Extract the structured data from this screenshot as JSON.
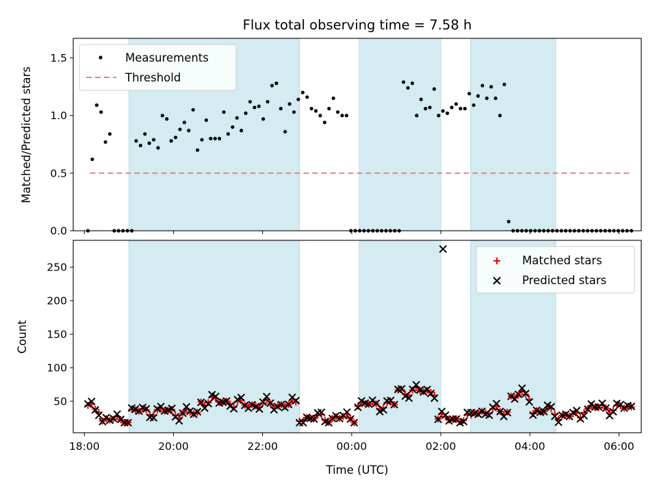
{
  "chart_data": [
    {
      "type": "scatter",
      "title": "Flux total observing time = 7.58 h",
      "ylabel": "Matched/Predicted stars",
      "xlabel": "",
      "ylim": [
        0,
        1.67
      ],
      "yticks": [
        0.0,
        0.5,
        1.0,
        1.5
      ],
      "ytick_labels": [
        "0.0",
        "0.5",
        "1.0",
        "1.5"
      ],
      "legend": {
        "placement": "upper-left",
        "entries": [
          {
            "label": "Measurements",
            "marker": "dot",
            "color": "#000000"
          },
          {
            "label": "Threshold",
            "marker": "dashed-line",
            "color": "#f08080"
          }
        ]
      },
      "threshold": {
        "y": 0.5,
        "x_start": 0.125,
        "x_end": 12.25
      },
      "series": [
        {
          "name": "Measurements",
          "color": "#000000",
          "x": [
            0.08,
            0.18,
            0.25,
            0.33,
            0.45,
            0.53,
            0.62,
            0.68,
            0.78,
            0.88,
            0.95,
            1.02,
            1.08,
            1.18,
            1.28,
            1.38,
            1.48,
            1.58,
            1.68,
            1.78,
            1.88,
            1.98,
            2.08,
            2.18,
            2.28,
            2.38,
            2.48,
            2.58,
            2.68,
            2.78,
            2.88,
            2.98,
            3.08,
            3.18,
            3.28,
            3.38,
            3.48,
            3.58,
            3.68,
            3.78,
            3.88,
            3.98,
            4.08,
            4.18,
            4.28,
            4.38,
            4.48,
            4.58,
            4.68,
            4.78,
            4.88,
            4.98,
            5.08,
            5.18,
            5.28,
            5.38,
            5.48,
            5.58,
            5.68,
            5.78,
            5.88,
            5.98,
            6.08,
            6.18,
            6.28,
            6.38,
            6.48,
            6.58,
            6.68,
            6.78,
            6.88,
            6.98,
            7.08,
            7.18,
            7.28,
            7.38,
            7.48,
            7.58,
            7.68,
            7.78,
            7.88,
            7.98,
            8.08,
            8.18,
            8.28,
            8.38,
            8.48,
            8.58,
            8.68,
            8.78,
            8.88,
            8.98,
            9.08,
            9.18,
            9.28,
            9.38,
            9.48,
            9.58,
            9.68,
            9.78,
            9.88,
            9.98,
            10.08,
            10.18,
            10.28,
            10.38,
            10.48,
            10.58,
            10.68,
            10.78,
            10.88,
            10.98,
            11.08,
            11.18,
            11.28,
            11.38,
            11.48,
            11.58,
            11.68,
            11.78,
            11.88,
            11.98,
            12.08,
            12.18,
            12.28
          ],
          "values": [
            0.0,
            0.62,
            1.09,
            1.03,
            0.77,
            0.84,
            0.0,
            0.0,
            0.0,
            0.0,
            0.0,
            0.78,
            0.74,
            0.84,
            0.76,
            0.79,
            0.72,
            1.0,
            0.97,
            0.78,
            0.81,
            0.88,
            0.94,
            0.87,
            1.05,
            0.7,
            0.79,
            0.96,
            0.8,
            0.8,
            0.8,
            1.03,
            0.84,
            0.9,
            0.98,
            0.87,
            1.02,
            1.12,
            1.07,
            1.08,
            0.97,
            1.12,
            1.26,
            1.28,
            1.06,
            0.86,
            1.1,
            1.03,
            1.14,
            1.2,
            1.16,
            1.06,
            1.04,
            1.0,
            0.94,
            1.06,
            1.15,
            1.03,
            1.0,
            1.0,
            0.0,
            0.0,
            0.0,
            0.0,
            0.0,
            0.0,
            0.0,
            0.0,
            0.0,
            0.0,
            0.0,
            0.0,
            1.29,
            1.24,
            1.28,
            1.0,
            1.14,
            1.06,
            1.07,
            1.23,
            1.0,
            1.04,
            1.02,
            1.07,
            1.1,
            1.06,
            1.06,
            1.19,
            1.09,
            1.17,
            1.26,
            1.15,
            1.25,
            1.15,
            1.0,
            1.27,
            0.08,
            0.0,
            0.0,
            0.0,
            0.0,
            0.0,
            0.0,
            0.0,
            0.0,
            0.0,
            0.0,
            0.0,
            0.0,
            0.0,
            0.0,
            0.0,
            0.0,
            0.0,
            0.0,
            0.0,
            0.0,
            0.0,
            0.0,
            0.0,
            0.0,
            0.0,
            0.0,
            0.0,
            0.0
          ]
        }
      ]
    },
    {
      "type": "scatter",
      "title": "",
      "xlabel": "Time (UTC)",
      "ylabel": "Count",
      "ylim": [
        3,
        290
      ],
      "yticks": [
        50,
        100,
        150,
        200,
        250
      ],
      "ytick_labels": [
        "50",
        "100",
        "150",
        "200",
        "250"
      ],
      "xlim": [
        -0.25,
        12.5
      ],
      "xticks": [
        0,
        2,
        4,
        6,
        8,
        10,
        12
      ],
      "xtick_labels": [
        "18:00",
        "20:00",
        "22:00",
        "00:00",
        "02:00",
        "04:00",
        "06:00"
      ],
      "legend": {
        "placement": "upper-right",
        "entries": [
          {
            "label": "Matched stars",
            "marker": "plus",
            "color": "#ff0000"
          },
          {
            "label": "Predicted stars",
            "marker": "x",
            "color": "#000000"
          }
        ]
      },
      "series": [
        {
          "name": "Matched stars",
          "color": "#ff0000",
          "x": [],
          "values": []
        },
        {
          "name": "Predicted stars",
          "color": "#000000",
          "x": [],
          "values": []
        }
      ]
    }
  ],
  "shaded_intervals": [
    [
      1.0,
      4.83
    ],
    [
      6.17,
      8.0
    ],
    [
      8.67,
      10.58
    ]
  ],
  "tail_measurements": {
    "x": [
      10.58,
      10.68,
      10.78,
      10.88,
      10.98,
      11.08,
      11.18,
      11.28,
      11.38,
      11.48,
      11.58,
      11.68,
      11.78,
      11.88,
      11.98,
      12.08,
      12.18,
      12.28,
      12.38
    ],
    "values": [
      0.0,
      0.0,
      0.0,
      0.0,
      0.0,
      0.0,
      0.0,
      0.0,
      0.0,
      0.0,
      0.0,
      0.0,
      0.0,
      0.0,
      0.0,
      0.0,
      0.0,
      0.0,
      0.0
    ]
  }
}
